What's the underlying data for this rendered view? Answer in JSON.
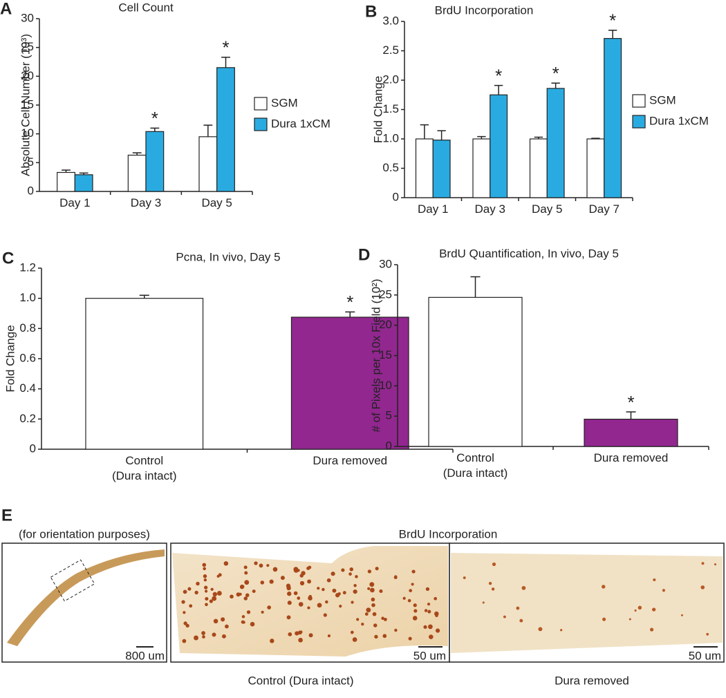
{
  "chart_data": [
    {
      "type": "bar",
      "panel_label": "A",
      "title": "Cell Count",
      "ylabel": "Absolute Cell Number (10³)",
      "categories": [
        "Day 1",
        "Day 3",
        "Day 5"
      ],
      "series": [
        {
          "name": "SGM",
          "color": "#ffffff",
          "values": [
            3.3,
            6.3,
            9.5
          ],
          "errors": [
            0.4,
            0.4,
            2.0
          ],
          "annotations": [
            null,
            null,
            null
          ]
        },
        {
          "name": "Dura 1xCM",
          "color": "#29abe2",
          "values": [
            2.9,
            10.4,
            21.5
          ],
          "errors": [
            0.3,
            0.6,
            1.8
          ],
          "annotations": [
            null,
            "*",
            "*"
          ]
        }
      ],
      "ylim": [
        0,
        30
      ],
      "yticks": [
        0,
        5,
        10,
        15,
        20,
        25,
        30
      ],
      "legend": "right"
    },
    {
      "type": "bar",
      "panel_label": "B",
      "title": "BrdU Incorporation",
      "ylabel": "Fold Change",
      "categories": [
        "Day 1",
        "Day 3",
        "Day 5",
        "Day 7"
      ],
      "series": [
        {
          "name": "SGM",
          "color": "#ffffff",
          "values": [
            1.0,
            1.0,
            1.0,
            1.0
          ],
          "errors": [
            0.24,
            0.04,
            0.03,
            0.01
          ],
          "annotations": [
            null,
            null,
            null,
            null
          ]
        },
        {
          "name": "Dura 1xCM",
          "color": "#29abe2",
          "values": [
            0.98,
            1.75,
            1.86,
            2.71
          ],
          "errors": [
            0.16,
            0.16,
            0.09,
            0.14
          ],
          "annotations": [
            null,
            "*",
            "*",
            "*"
          ]
        }
      ],
      "ylim": [
        0,
        3
      ],
      "yticks": [
        0,
        0.5,
        {
          "value": 1,
          "label": "1.0"
        },
        1.5,
        {
          "value": 2,
          "label": "2.0"
        },
        2.5,
        {
          "value": 3,
          "label": "3.0"
        }
      ],
      "legend": "right"
    },
    {
      "type": "bar",
      "panel_label": "C",
      "title": "Pcna, In vivo, Day 5",
      "ylabel": "Fold Change",
      "categories": [
        "Control\n(Dura intact)",
        "Dura removed"
      ],
      "values": [
        1.0,
        0.875
      ],
      "errors": [
        0.02,
        0.035
      ],
      "colors": [
        "#ffffff",
        "#92278f"
      ],
      "annotations": [
        null,
        "*"
      ],
      "ylim": [
        0,
        1.2
      ],
      "yticks": [
        0,
        0.2,
        0.4,
        0.6,
        0.8,
        {
          "value": 1,
          "label": "1.0"
        },
        1.2
      ]
    },
    {
      "type": "bar",
      "panel_label": "D",
      "title": "BrdU Quantification, In vivo, Day 5",
      "ylabel": "# of Pixels per 10x Field (10²)",
      "categories": [
        "Control\n(Dura intact)",
        "Dura removed"
      ],
      "values": [
        24.6,
        4.5
      ],
      "errors": [
        3.4,
        1.2
      ],
      "colors": [
        "#ffffff",
        "#92278f"
      ],
      "annotations": [
        null,
        "*"
      ],
      "ylim": [
        0,
        30
      ],
      "yticks": [
        0,
        5,
        10,
        15,
        20,
        25,
        30
      ]
    }
  ],
  "panel_e": {
    "panel_label": "E",
    "left_caption": "(for orientation purposes)",
    "center_title": "BrdU Incorporation",
    "scale_bars": [
      "800 um",
      "50 um",
      "50 um"
    ],
    "captions": [
      "Control (Dura intact)",
      "Dura removed"
    ]
  }
}
